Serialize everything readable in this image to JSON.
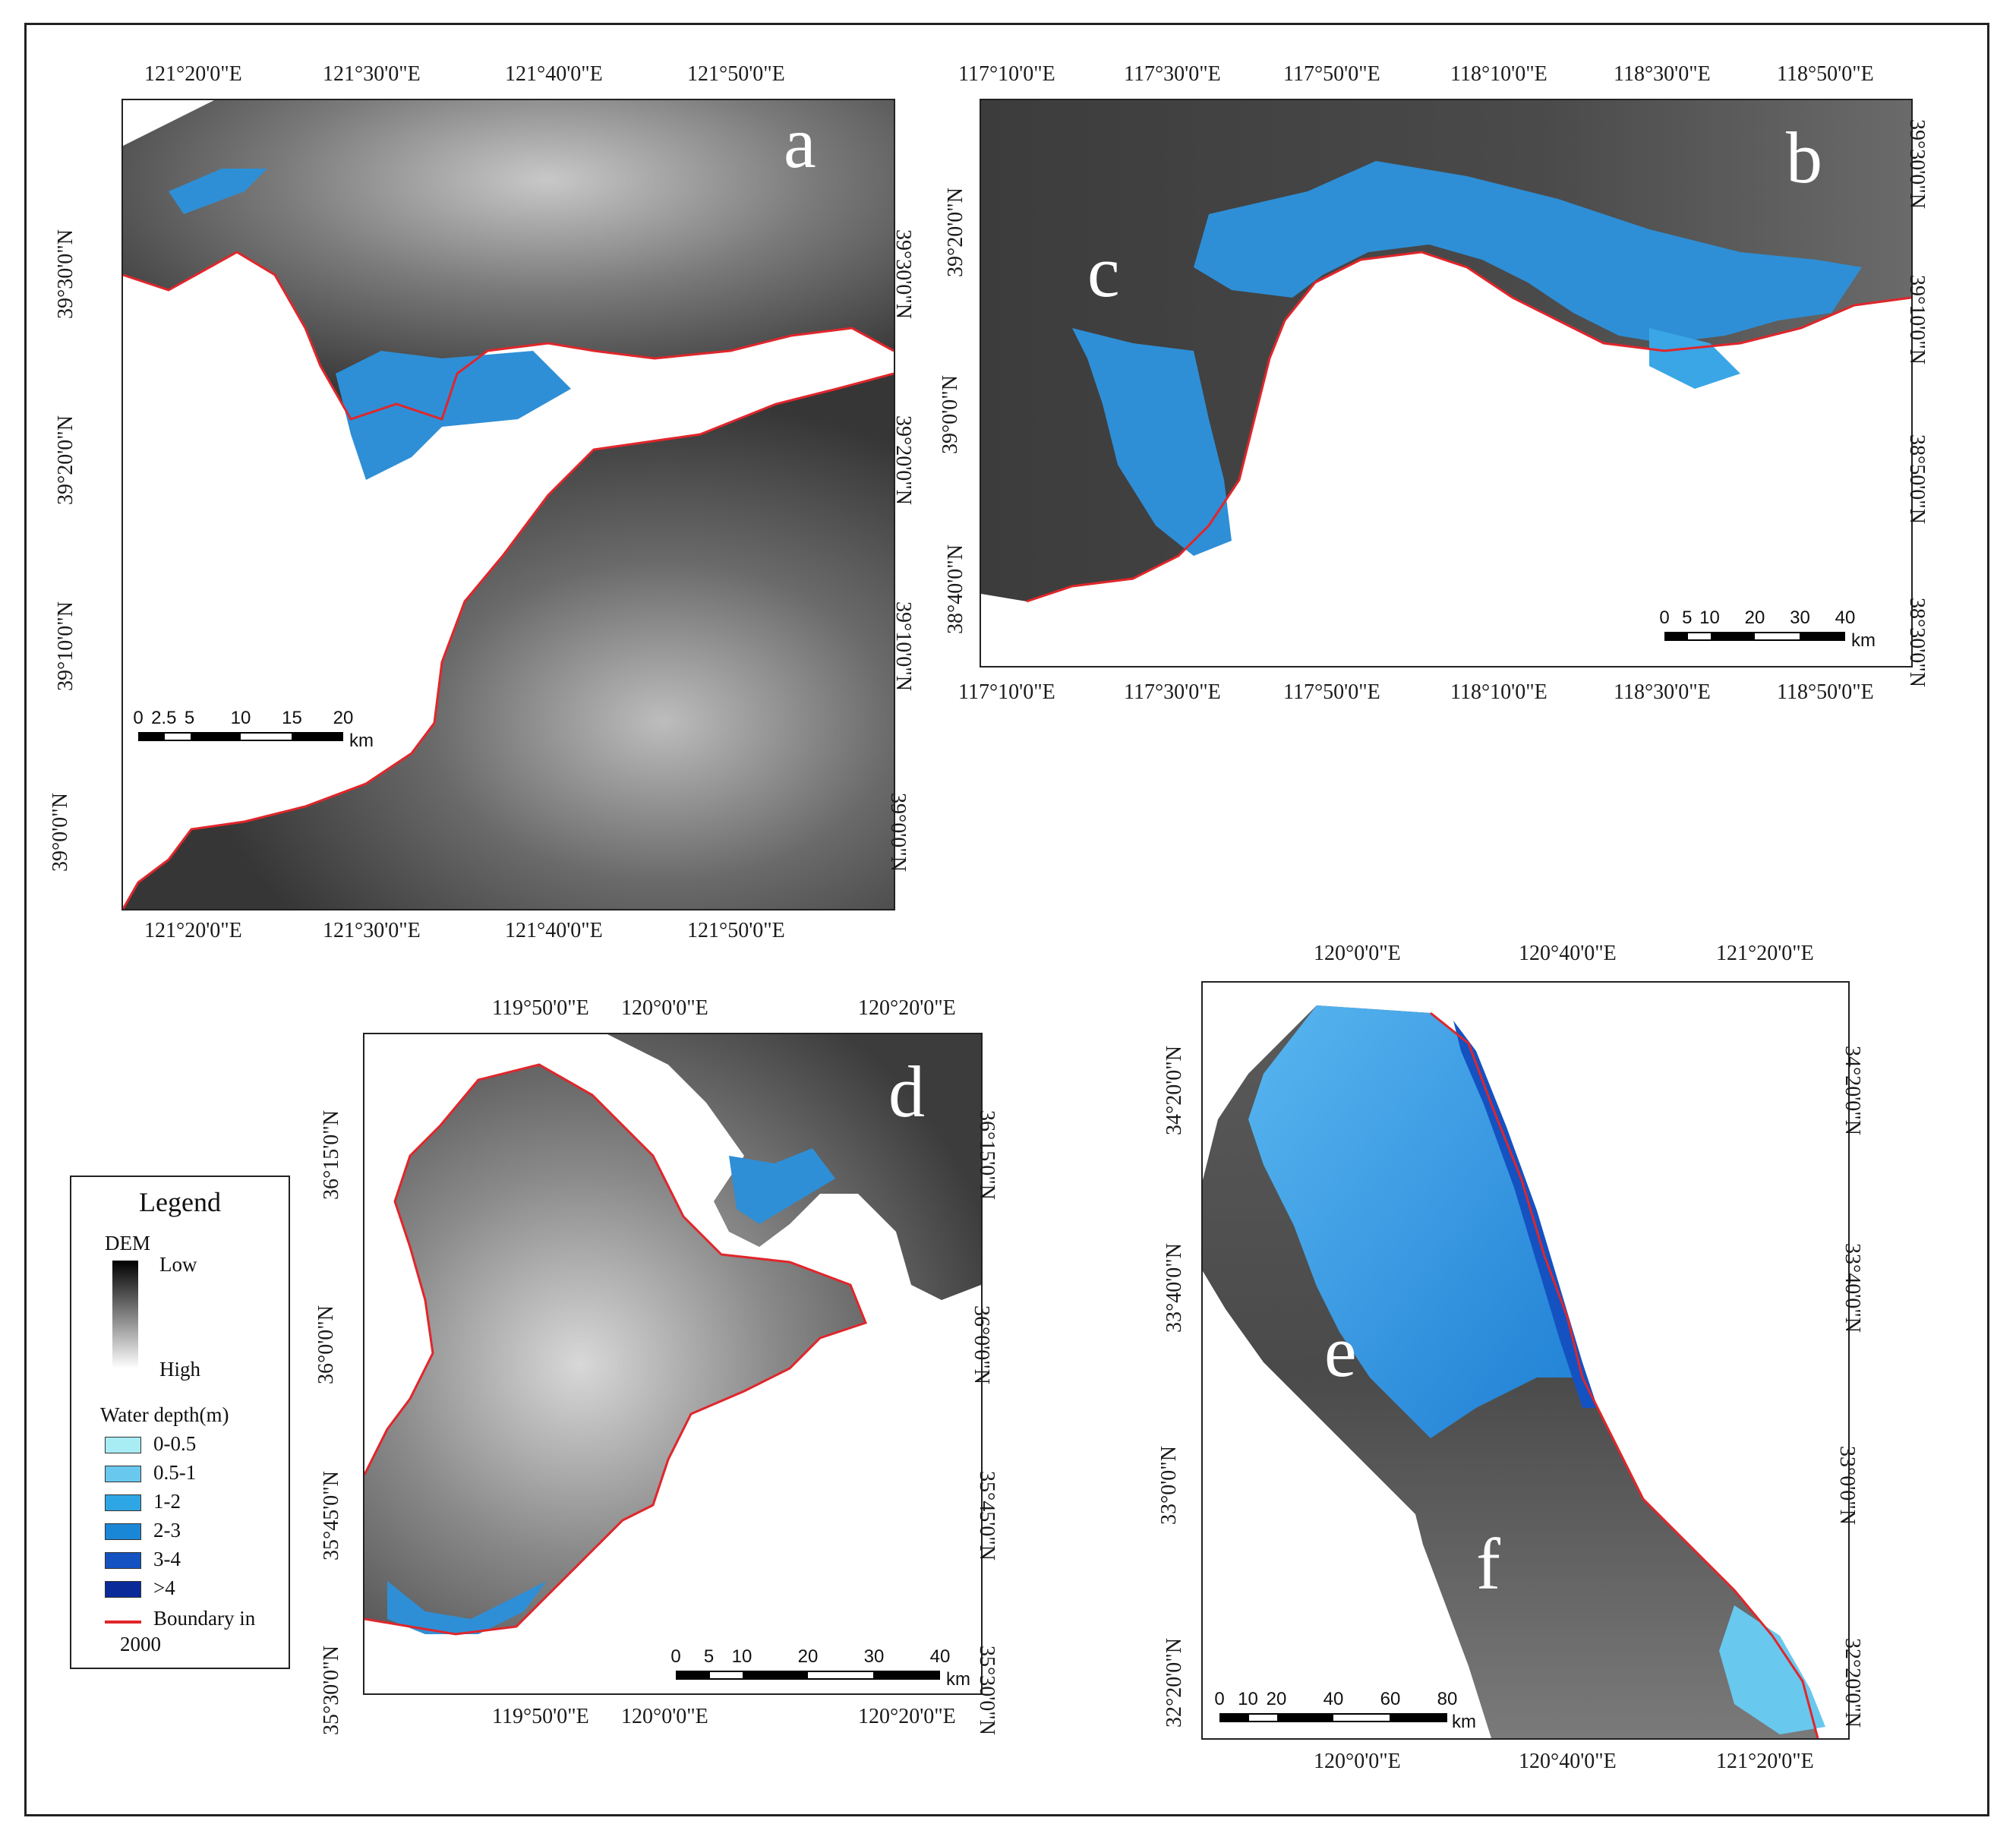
{
  "panels": {
    "a": {
      "letter": "a",
      "top_ticks": [
        "121°20'0\"E",
        "121°30'0\"E",
        "121°40'0\"E",
        "121°50'0\"E"
      ],
      "bottom_ticks": [
        "121°20'0\"E",
        "121°30'0\"E",
        "121°40'0\"E",
        "121°50'0\"E"
      ],
      "left_ticks": [
        "39°30'0\"N",
        "39°20'0\"N",
        "39°10'0\"N",
        "39°0'0\"N"
      ],
      "right_ticks": [
        "39°30'0\"N",
        "39°20'0\"N",
        "39°10'0\"N",
        "39°0'0\"N"
      ],
      "scale": {
        "ticks": [
          "0",
          "2.5",
          "5",
          "10",
          "15",
          "20"
        ],
        "unit": "km"
      }
    },
    "b": {
      "letter": "b",
      "letter2": "c",
      "top_ticks": [
        "117°10'0\"E",
        "117°30'0\"E",
        "117°50'0\"E",
        "118°10'0\"E",
        "118°30'0\"E",
        "118°50'0\"E"
      ],
      "bottom_ticks": [
        "117°10'0\"E",
        "117°30'0\"E",
        "117°50'0\"E",
        "118°10'0\"E",
        "118°30'0\"E",
        "118°50'0\"E"
      ],
      "left_ticks": [
        "39°20'0\"N",
        "39°0'0\"N",
        "38°40'0\"N"
      ],
      "right_ticks": [
        "39°30'0\"N",
        "39°10'0\"N",
        "38°50'0\"N",
        "38°30'0\"N"
      ],
      "scale": {
        "ticks": [
          "0",
          "5",
          "10",
          "20",
          "30",
          "40"
        ],
        "unit": "km"
      }
    },
    "d": {
      "letter": "d",
      "top_ticks": [
        "119°50'0\"E",
        "120°0'0\"E",
        "120°20'0\"E"
      ],
      "bottom_ticks": [
        "119°50'0\"E",
        "120°0'0\"E",
        "120°20'0\"E"
      ],
      "left_ticks": [
        "36°15'0\"N",
        "36°0'0\"N",
        "35°45'0\"N",
        "35°30'0\"N"
      ],
      "right_ticks": [
        "36°15'0\"N",
        "36°0'0\"N",
        "35°45'0\"N",
        "35°30'0\"N"
      ],
      "scale": {
        "ticks": [
          "0",
          "5",
          "10",
          "20",
          "30",
          "40"
        ],
        "unit": "km"
      }
    },
    "e": {
      "letter": "e",
      "letter2": "f",
      "top_ticks": [
        "120°0'0\"E",
        "120°40'0\"E",
        "121°20'0\"E"
      ],
      "bottom_ticks": [
        "120°0'0\"E",
        "120°40'0\"E",
        "121°20'0\"E"
      ],
      "left_ticks": [
        "34°20'0\"N",
        "33°40'0\"N",
        "33°0'0\"N",
        "32°20'0\"N"
      ],
      "right_ticks": [
        "34°20'0\"N",
        "33°40'0\"N",
        "33°0'0\"N",
        "32°20'0\"N"
      ],
      "scale": {
        "ticks": [
          "0",
          "10",
          "20",
          "40",
          "60",
          "80"
        ],
        "unit": "km"
      }
    }
  },
  "legend": {
    "title": "Legend",
    "dem_label": "DEM",
    "dem_low": "Low",
    "dem_high": "High",
    "water_title": "Water depth(m)",
    "classes": [
      {
        "label": "0-0.5",
        "color": "#a8ecf4"
      },
      {
        "label": "0.5-1",
        "color": "#69c8ee"
      },
      {
        "label": "1-2",
        "color": "#2ea6e4"
      },
      {
        "label": "2-3",
        "color": "#1a86d6"
      },
      {
        "label": "3-4",
        "color": "#1452c2"
      },
      {
        "label": ">4",
        "color": "#0a2a9a"
      }
    ],
    "boundary_label_1": "Boundary in",
    "boundary_label_2": "2000",
    "boundary_color": "#e0262b"
  }
}
